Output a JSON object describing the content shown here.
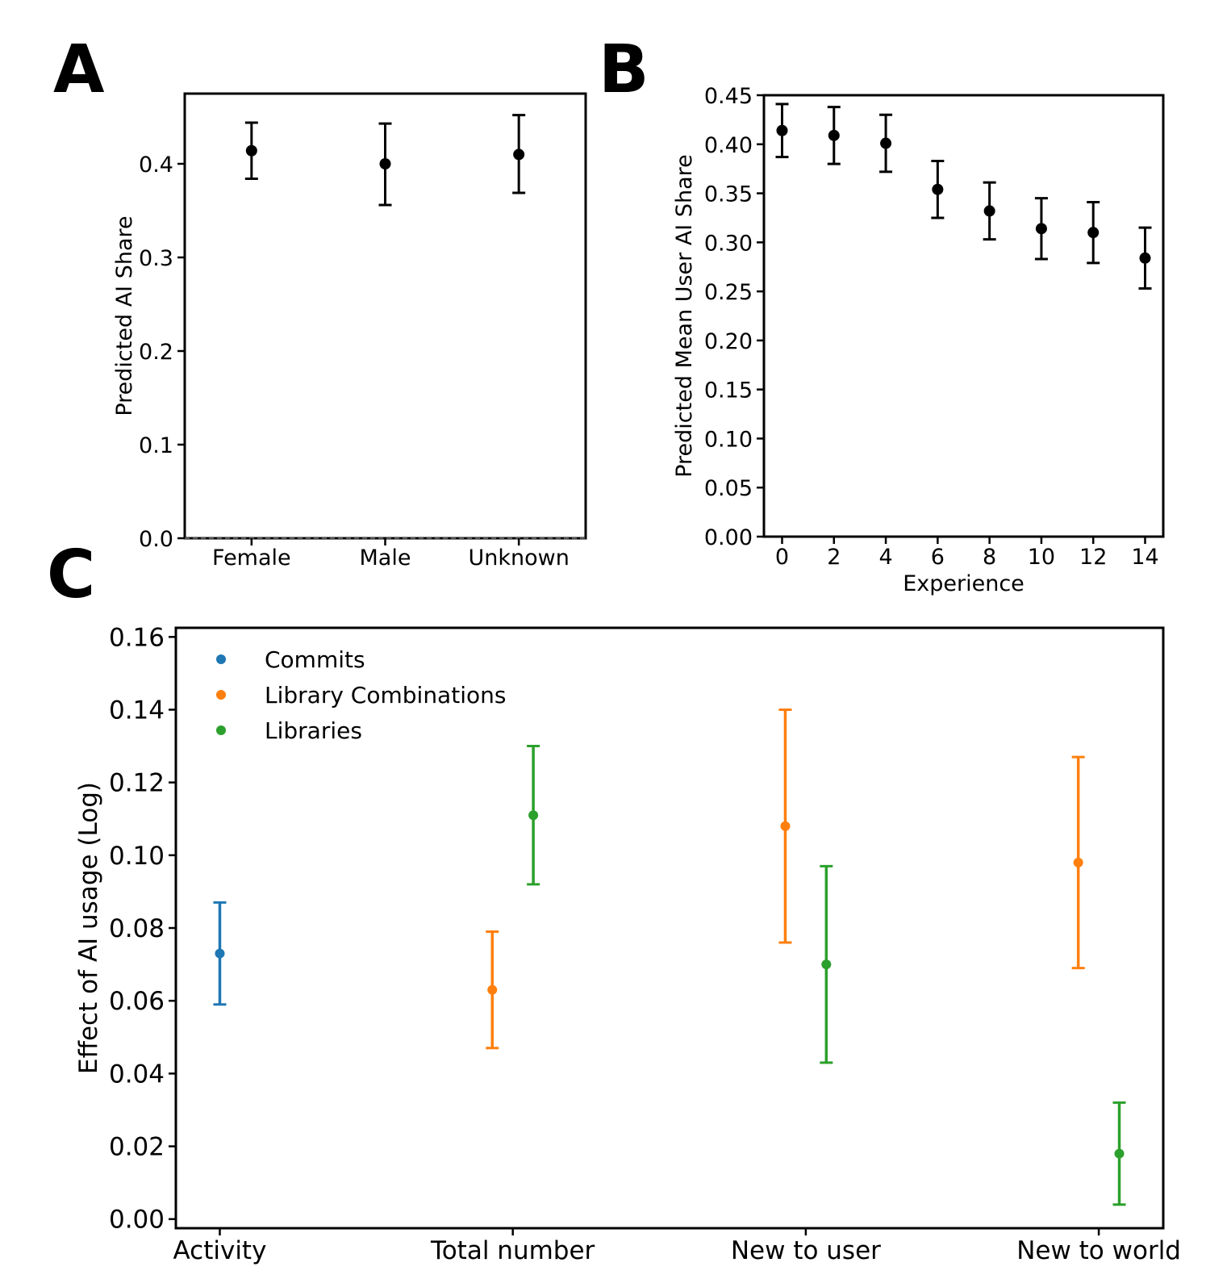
{
  "chart_data": [
    {
      "panel": "A",
      "type": "scatter",
      "error_bars": true,
      "xlabel": "",
      "ylabel": "Predicted AI Share",
      "categories": [
        "Female",
        "Male",
        "Unknown"
      ],
      "ylim": [
        0.0,
        0.475
      ],
      "yticks": [
        0.0,
        0.1,
        0.2,
        0.3,
        0.4
      ],
      "ytick_labels": [
        "0.0",
        "0.1",
        "0.2",
        "0.3",
        "0.4"
      ],
      "baseline": 0.0,
      "series": [
        {
          "name": "Predicted AI Share",
          "color": "#000000",
          "values": [
            0.414,
            0.4,
            0.41
          ],
          "lower": [
            0.384,
            0.356,
            0.369
          ],
          "upper": [
            0.444,
            0.443,
            0.452
          ]
        }
      ]
    },
    {
      "panel": "B",
      "type": "scatter",
      "error_bars": true,
      "xlabel": "Experience",
      "ylabel": "Predicted Mean User AI Share",
      "x": [
        0,
        2,
        4,
        6,
        8,
        10,
        12,
        14
      ],
      "xlim": [
        -0.7,
        14.7
      ],
      "xticks": [
        0,
        2,
        4,
        6,
        8,
        10,
        12,
        14
      ],
      "xtick_labels": [
        "0",
        "2",
        "4",
        "6",
        "8",
        "10",
        "12",
        "14"
      ],
      "ylim": [
        0.0,
        0.45
      ],
      "yticks": [
        0.0,
        0.05,
        0.1,
        0.15,
        0.2,
        0.25,
        0.3,
        0.35,
        0.4,
        0.45
      ],
      "ytick_labels": [
        "0.00",
        "0.05",
        "0.10",
        "0.15",
        "0.20",
        "0.25",
        "0.30",
        "0.35",
        "0.40",
        "0.45"
      ],
      "series": [
        {
          "name": "Predicted Mean User AI Share",
          "color": "#000000",
          "values": [
            0.414,
            0.409,
            0.401,
            0.354,
            0.332,
            0.314,
            0.31,
            0.284
          ],
          "lower": [
            0.387,
            0.38,
            0.372,
            0.325,
            0.303,
            0.283,
            0.279,
            0.253
          ],
          "upper": [
            0.441,
            0.438,
            0.43,
            0.383,
            0.361,
            0.345,
            0.341,
            0.315
          ]
        }
      ]
    },
    {
      "panel": "C",
      "type": "scatter",
      "error_bars": true,
      "xlabel": "",
      "ylabel": "Effect of AI usage (Log)",
      "categories": [
        "Activity",
        "Total number",
        "New to user",
        "New to world"
      ],
      "ylim": [
        -0.0025,
        0.1625
      ],
      "yticks": [
        0.0,
        0.02,
        0.04,
        0.06,
        0.08,
        0.1,
        0.12,
        0.14,
        0.16
      ],
      "ytick_labels": [
        "0.00",
        "0.02",
        "0.04",
        "0.06",
        "0.08",
        "0.10",
        "0.12",
        "0.14",
        "0.16"
      ],
      "legend_position": "top-left",
      "series": [
        {
          "name": "Commits",
          "color": "#1f77b4",
          "offset": 0,
          "categories": [
            "Activity"
          ],
          "values": [
            0.073
          ],
          "lower": [
            0.059
          ],
          "upper": [
            0.087
          ]
        },
        {
          "name": "Library Combinations",
          "color": "#ff7f0e",
          "offset": -0.07,
          "categories": [
            "Total number",
            "New to user",
            "New to world"
          ],
          "values": [
            0.063,
            0.108,
            0.098
          ],
          "lower": [
            0.047,
            0.076,
            0.069
          ],
          "upper": [
            0.079,
            0.14,
            0.127
          ]
        },
        {
          "name": "Libraries",
          "color": "#2ca02c",
          "offset": 0.07,
          "categories": [
            "Total number",
            "New to user",
            "New to world"
          ],
          "values": [
            0.111,
            0.07,
            0.018
          ],
          "lower": [
            0.092,
            0.043,
            0.004
          ],
          "upper": [
            0.13,
            0.097,
            0.032
          ]
        }
      ]
    }
  ]
}
